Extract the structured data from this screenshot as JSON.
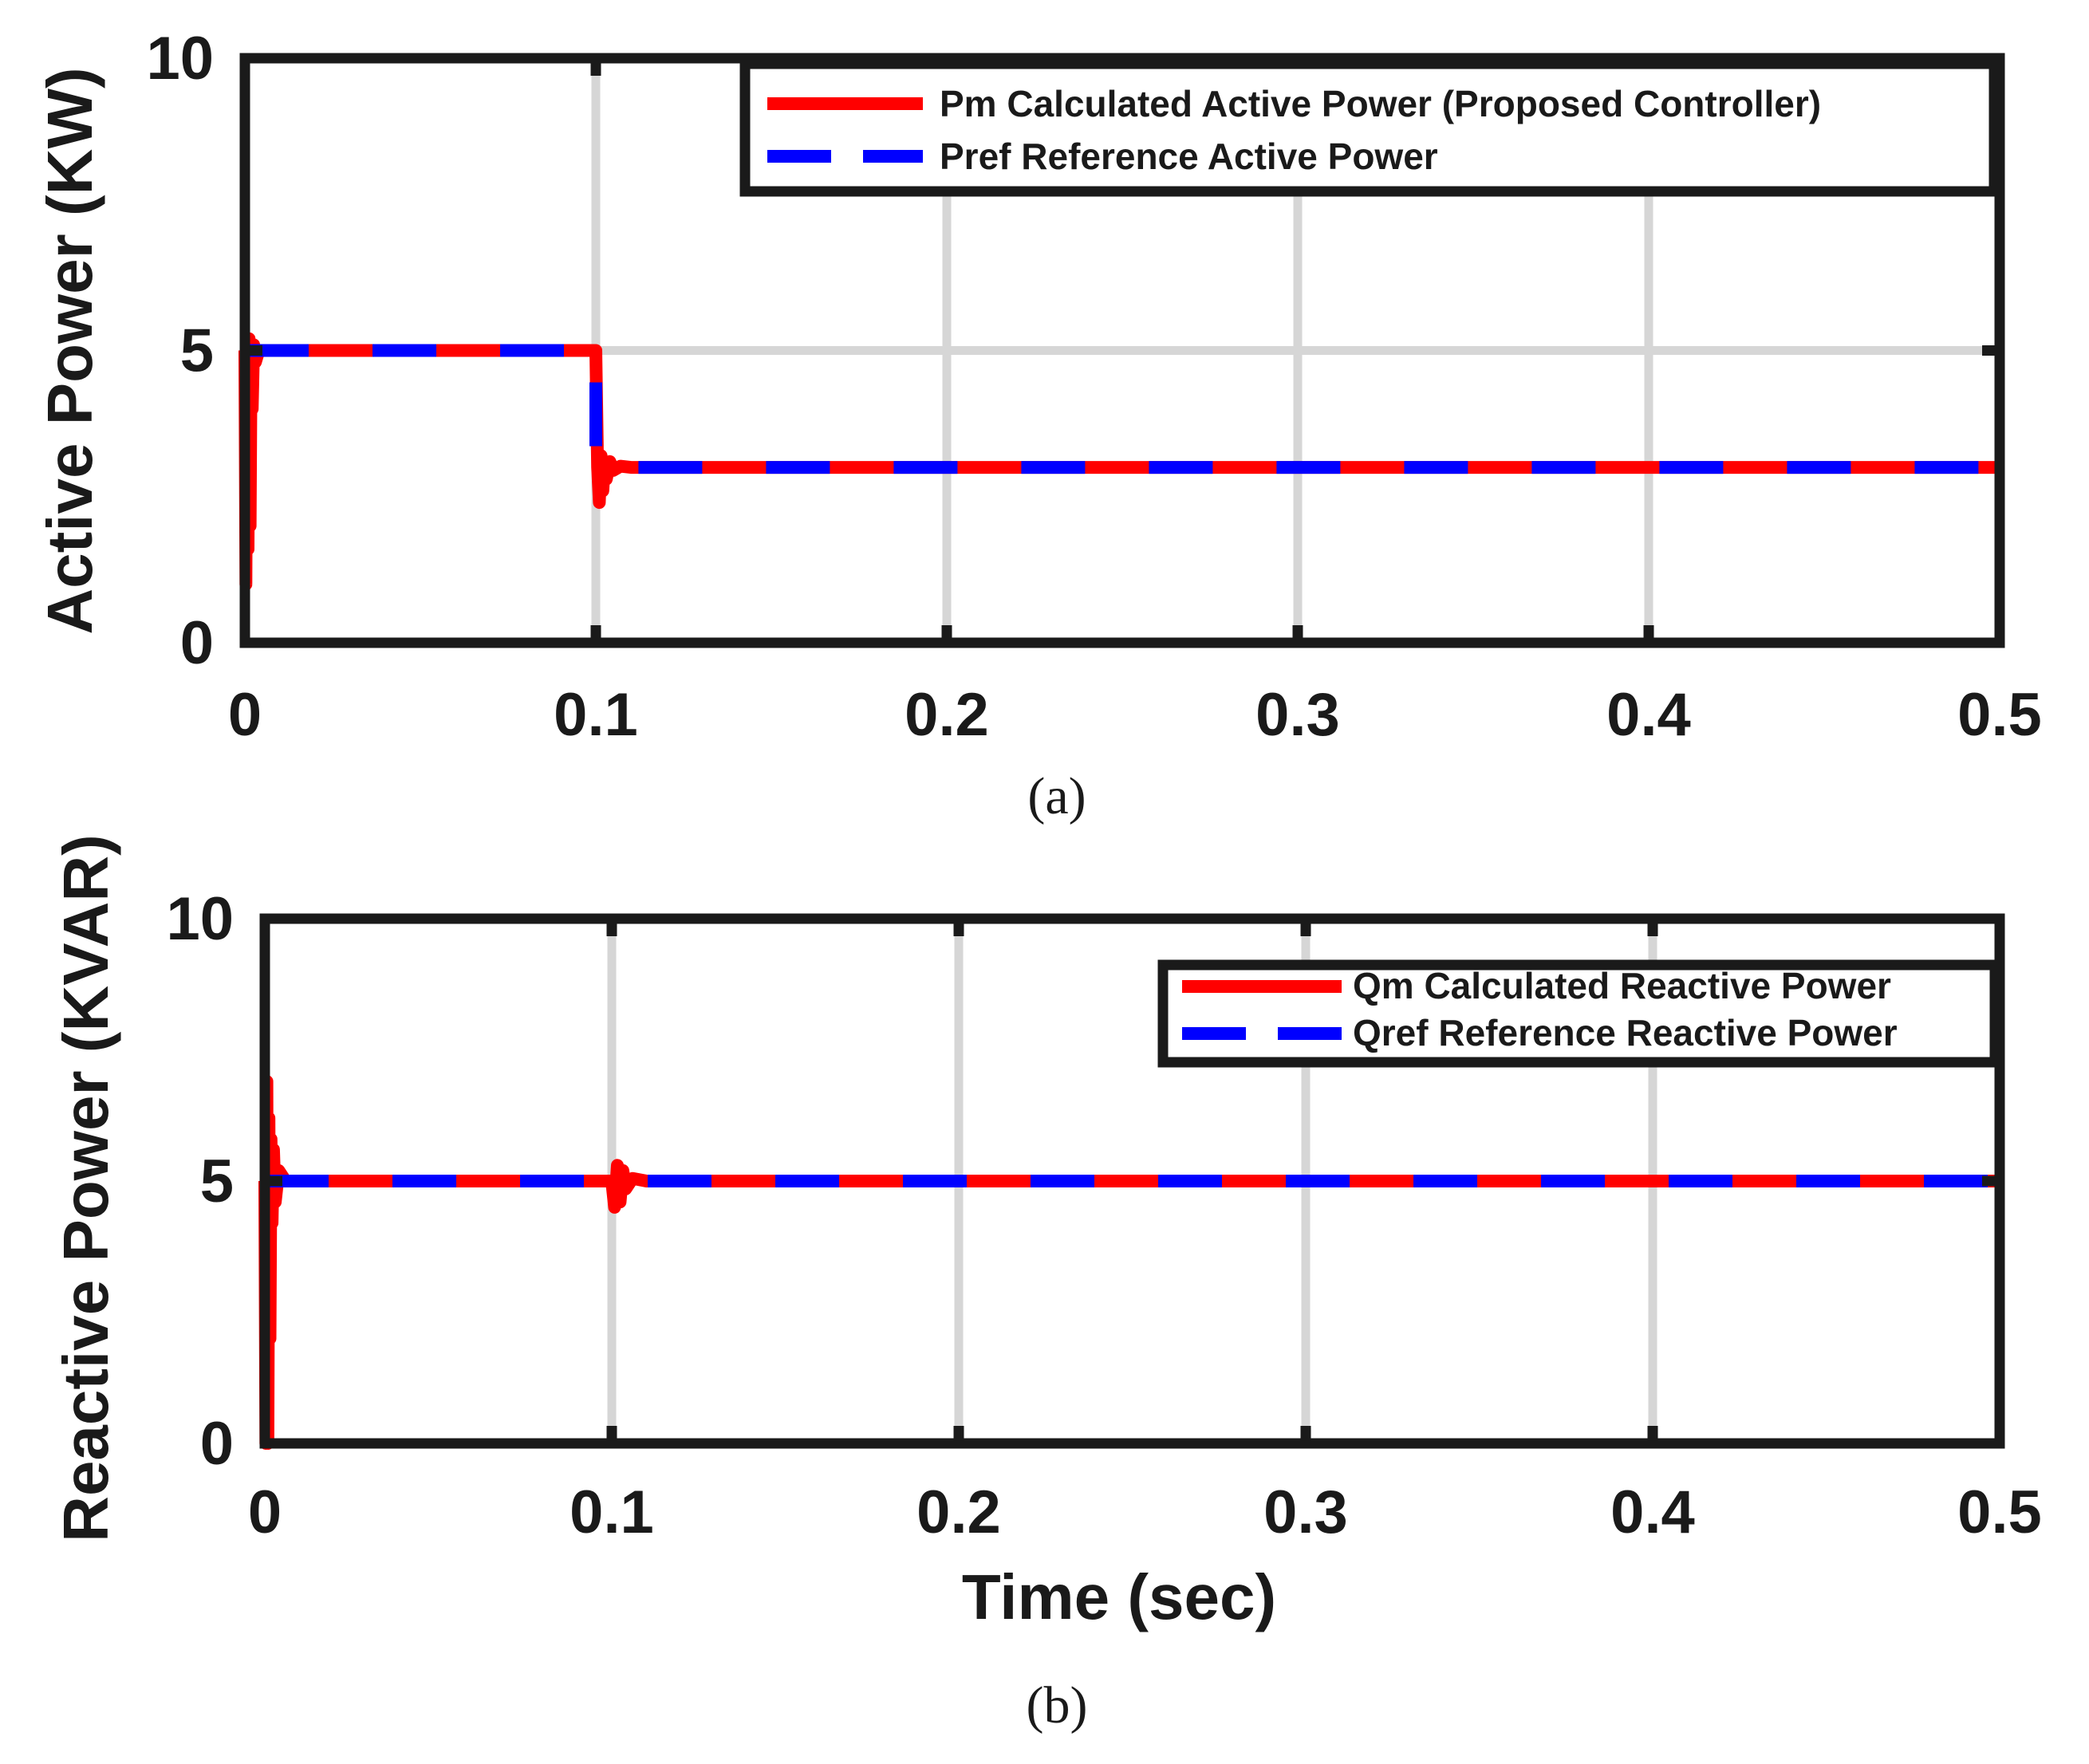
{
  "chart_data": [
    {
      "id": "a",
      "type": "line",
      "caption": "(a)",
      "xlabel": "",
      "ylabel": "Active Power (KW)",
      "xlim": [
        0,
        0.5
      ],
      "ylim": [
        0,
        10
      ],
      "xticks": [
        0,
        0.1,
        0.2,
        0.3,
        0.4,
        0.5
      ],
      "xtick_labels": [
        "0",
        "0.1",
        "0.2",
        "0.3",
        "0.4",
        "0.5"
      ],
      "yticks": [
        0,
        5,
        10
      ],
      "ytick_labels": [
        "0",
        "5",
        "10"
      ],
      "grid": true,
      "legend_position": "top-right",
      "series": [
        {
          "name": "Pm Calculated Active Power (Proposed Controller)",
          "color": "#ff0000",
          "style": "solid",
          "x": [
            0,
            0.0003,
            0.0006,
            0.0009,
            0.0012,
            0.0015,
            0.0018,
            0.0021,
            0.0025,
            0.003,
            0.004,
            0.005,
            0.099,
            0.1,
            0.1005,
            0.101,
            0.1015,
            0.102,
            0.1025,
            0.103,
            0.104,
            0.105,
            0.107,
            0.11,
            0.5
          ],
          "y": [
            5.0,
            1.0,
            5.2,
            1.6,
            5.2,
            2.0,
            5.1,
            4.0,
            5.1,
            4.8,
            5.0,
            5.0,
            5.0,
            5.0,
            3.0,
            2.4,
            3.2,
            2.6,
            3.1,
            2.8,
            3.1,
            2.95,
            3.02,
            3.0,
            3.0
          ]
        },
        {
          "name": "Pref Reference Active Power",
          "color": "#0000ff",
          "style": "dashed",
          "x": [
            0,
            0.1,
            0.1,
            0.5
          ],
          "y": [
            5.0,
            5.0,
            3.0,
            3.0
          ]
        }
      ]
    },
    {
      "id": "b",
      "type": "line",
      "caption": "(b)",
      "xlabel": "Time (sec)",
      "ylabel": "Reactive Power (KVAR)",
      "xlim": [
        0,
        0.5
      ],
      "ylim": [
        0,
        10
      ],
      "xticks": [
        0,
        0.1,
        0.2,
        0.3,
        0.4,
        0.5
      ],
      "xtick_labels": [
        "0",
        "0.1",
        "0.2",
        "0.3",
        "0.4",
        "0.5"
      ],
      "yticks": [
        0,
        5,
        10
      ],
      "ytick_labels": [
        "0",
        "5",
        "10"
      ],
      "grid": true,
      "legend_position": "top-right",
      "series": [
        {
          "name": "Qm Calculated Reactive Power",
          "color": "#ff0000",
          "style": "solid",
          "x": [
            0,
            0.0003,
            0.0006,
            0.0009,
            0.0012,
            0.0015,
            0.0018,
            0.0021,
            0.0025,
            0.003,
            0.004,
            0.006,
            0.0995,
            0.1,
            0.1008,
            0.1016,
            0.1024,
            0.1032,
            0.104,
            0.106,
            0.11,
            0.5
          ],
          "y": [
            5.0,
            0.0,
            6.9,
            0.0,
            6.2,
            2.0,
            5.8,
            4.2,
            5.6,
            4.6,
            5.2,
            5.0,
            5.0,
            5.0,
            4.5,
            5.3,
            4.6,
            5.2,
            4.85,
            5.05,
            5.0,
            5.0
          ]
        },
        {
          "name": "Qref Reference Reactive Power",
          "color": "#0000ff",
          "style": "dashed",
          "x": [
            0,
            0.5
          ],
          "y": [
            5.0,
            5.0
          ]
        }
      ]
    }
  ]
}
